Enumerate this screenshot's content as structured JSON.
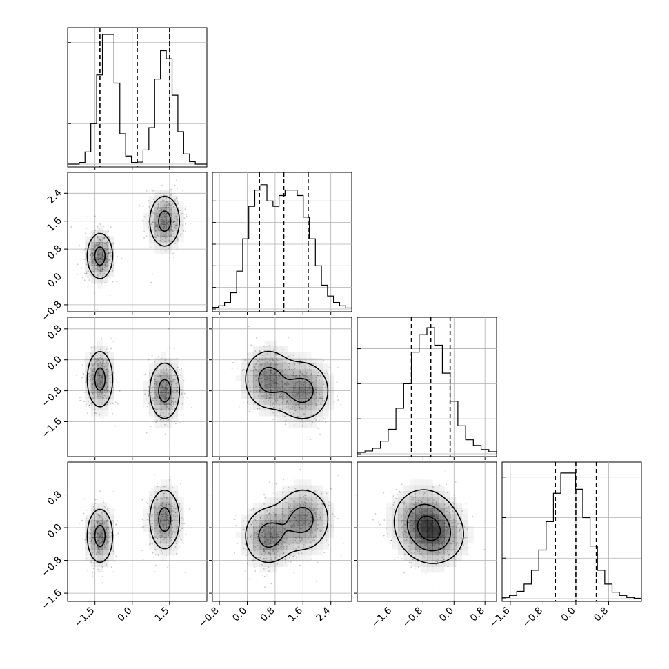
{
  "chart_data": {
    "type": "corner",
    "grid": true,
    "parameters": [
      {
        "ticks": [
          -1.5,
          0.0,
          1.5
        ],
        "tick_labels": [
          "−1.5",
          "0.0",
          "1.5"
        ],
        "range": [
          -2.6,
          3.0
        ],
        "quantiles": [
          -1.3,
          0.2,
          1.5
        ],
        "hist_bins": [
          0.0,
          0.0,
          0.4,
          3.0,
          10.0,
          22.0,
          32.0,
          32.0,
          20.0,
          7.5,
          2.0,
          0.4,
          0.5,
          3.5,
          9.0,
          21.0,
          28.0,
          26.0,
          17.0,
          8.0,
          2.5,
          0.6,
          0.0,
          0.0
        ],
        "hist_ticks": [
          0,
          10,
          20,
          30
        ],
        "hist_max": 32
      },
      {
        "ticks": [
          -0.8,
          0.0,
          0.8,
          1.6,
          2.4
        ],
        "tick_labels": [
          "−0.8",
          "0.0",
          "0.8",
          "1.6",
          "2.4"
        ],
        "range": [
          -1.0,
          3.0
        ],
        "quantiles": [
          0.35,
          1.05,
          1.75
        ],
        "hist_bins": [
          0.15,
          0.3,
          0.6,
          1.5,
          3.5,
          6.5,
          9.5,
          11.0,
          11.5,
          10.0,
          9.5,
          10.5,
          11.0,
          11.0,
          10.5,
          8.5,
          6.5,
          4.0,
          2.2,
          1.2,
          0.6,
          0.3,
          0.1
        ],
        "hist_ticks": [
          0,
          2,
          4,
          6,
          8,
          10
        ],
        "hist_max": 12
      },
      {
        "ticks": [
          -1.6,
          -0.8,
          0.0,
          0.8
        ],
        "tick_labels": [
          "−1.6",
          "−0.8",
          "0.0",
          "0.8"
        ],
        "range": [
          -2.5,
          1.1
        ],
        "quantiles": [
          -1.1,
          -0.6,
          -0.1
        ],
        "hist_bins": [
          0.2,
          0.4,
          0.8,
          1.8,
          3.5,
          6.5,
          10.0,
          14.5,
          17.0,
          18.0,
          15.5,
          11.5,
          7.5,
          4.0,
          2.0,
          1.2,
          0.6,
          0.3
        ],
        "hist_ticks": [
          0,
          5,
          10,
          15
        ],
        "hist_max": 18.5
      },
      {
        "ticks": [
          -1.6,
          -0.8,
          0.0,
          0.8
        ],
        "tick_labels": [
          "−1.6",
          "−0.8",
          "0.0",
          "0.8"
        ],
        "range": [
          -1.8,
          1.6
        ],
        "quantiles": [
          -0.5,
          0.0,
          0.5
        ],
        "hist_bins": [
          0.15,
          0.4,
          0.9,
          1.8,
          3.5,
          6.0,
          9.5,
          13.0,
          15.5,
          15.5,
          13.5,
          10.0,
          6.5,
          3.5,
          1.8,
          0.8,
          0.4,
          0.15,
          0.05
        ],
        "hist_ticks": [
          0,
          5,
          10,
          15
        ],
        "hist_max": 16
      }
    ],
    "modes": [
      {
        "weight": 0.5,
        "mean": [
          -1.3,
          0.6,
          -0.5,
          -0.2
        ],
        "sd": [
          0.3,
          0.38,
          0.42,
          0.38
        ]
      },
      {
        "weight": 0.5,
        "mean": [
          1.3,
          1.6,
          -0.8,
          0.2
        ],
        "sd": [
          0.35,
          0.42,
          0.42,
          0.42
        ]
      }
    ],
    "contour_levels": [
      0.118,
      0.393,
      0.675,
      0.865
    ],
    "n_scatter": 650
  }
}
